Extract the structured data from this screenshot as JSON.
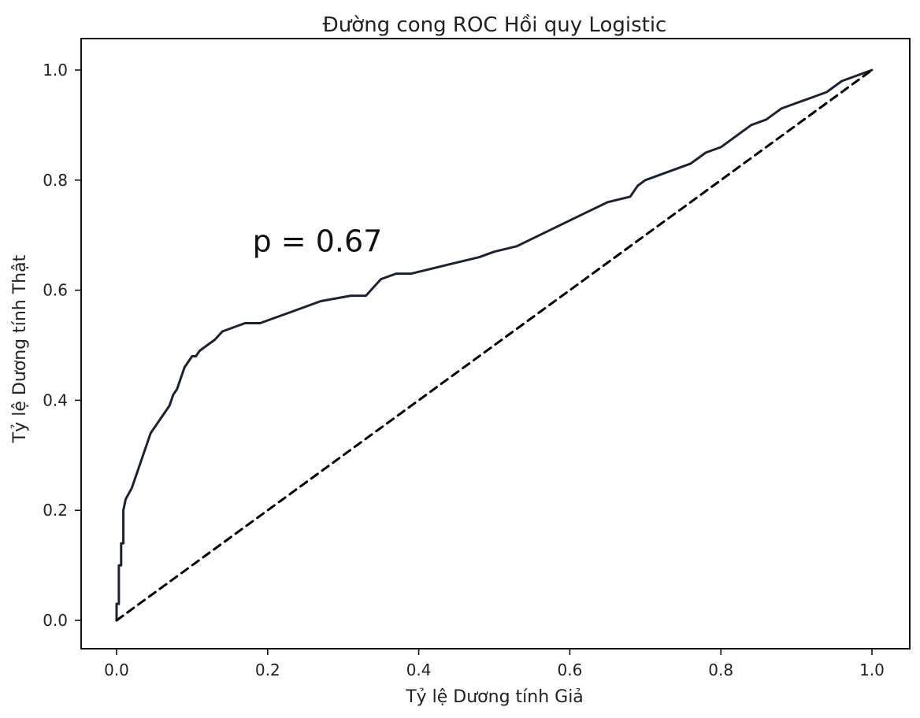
{
  "chart_data": {
    "type": "line",
    "title": "Đường cong ROC Hồi quy Logistic",
    "xlabel": "Tỷ lệ Dương tính Giả",
    "ylabel": "Tỷ lệ Dương tính Thật",
    "xlim": [
      0.0,
      1.0
    ],
    "ylim": [
      0.0,
      1.0
    ],
    "xticks": [
      "0.0",
      "0.2",
      "0.4",
      "0.6",
      "0.8",
      "1.0"
    ],
    "yticks": [
      "0.0",
      "0.2",
      "0.4",
      "0.6",
      "0.8",
      "1.0"
    ],
    "grid": false,
    "annotation": {
      "text": "p = 0.67",
      "x": 0.18,
      "y": 0.69
    },
    "series": [
      {
        "style": "solid",
        "color": "#1a2233",
        "x": [
          0.0,
          0.0,
          0.003,
          0.003,
          0.006,
          0.006,
          0.009,
          0.009,
          0.012,
          0.016,
          0.02,
          0.025,
          0.03,
          0.035,
          0.04,
          0.045,
          0.05,
          0.055,
          0.06,
          0.065,
          0.07,
          0.075,
          0.08,
          0.085,
          0.09,
          0.095,
          0.1,
          0.105,
          0.11,
          0.12,
          0.13,
          0.14,
          0.15,
          0.16,
          0.17,
          0.19,
          0.21,
          0.23,
          0.25,
          0.27,
          0.29,
          0.31,
          0.33,
          0.35,
          0.36,
          0.37,
          0.39,
          0.42,
          0.45,
          0.48,
          0.5,
          0.53,
          0.56,
          0.59,
          0.62,
          0.65,
          0.68,
          0.69,
          0.7,
          0.72,
          0.74,
          0.76,
          0.78,
          0.8,
          0.82,
          0.84,
          0.86,
          0.88,
          0.9,
          0.92,
          0.94,
          0.96,
          0.98,
          1.0
        ],
        "y": [
          0.0,
          0.03,
          0.03,
          0.1,
          0.1,
          0.14,
          0.14,
          0.2,
          0.22,
          0.23,
          0.24,
          0.26,
          0.28,
          0.3,
          0.32,
          0.34,
          0.35,
          0.36,
          0.37,
          0.38,
          0.39,
          0.41,
          0.42,
          0.44,
          0.46,
          0.47,
          0.48,
          0.48,
          0.49,
          0.5,
          0.51,
          0.525,
          0.53,
          0.535,
          0.54,
          0.54,
          0.55,
          0.56,
          0.57,
          0.58,
          0.585,
          0.59,
          0.59,
          0.62,
          0.625,
          0.63,
          0.63,
          0.64,
          0.65,
          0.66,
          0.67,
          0.68,
          0.7,
          0.72,
          0.74,
          0.76,
          0.77,
          0.79,
          0.8,
          0.81,
          0.82,
          0.83,
          0.85,
          0.86,
          0.88,
          0.9,
          0.91,
          0.93,
          0.94,
          0.95,
          0.96,
          0.98,
          0.99,
          1.0
        ]
      },
      {
        "style": "dashed",
        "color": "#000000",
        "x": [
          0.0,
          1.0
        ],
        "y": [
          0.0,
          1.0
        ]
      }
    ]
  }
}
